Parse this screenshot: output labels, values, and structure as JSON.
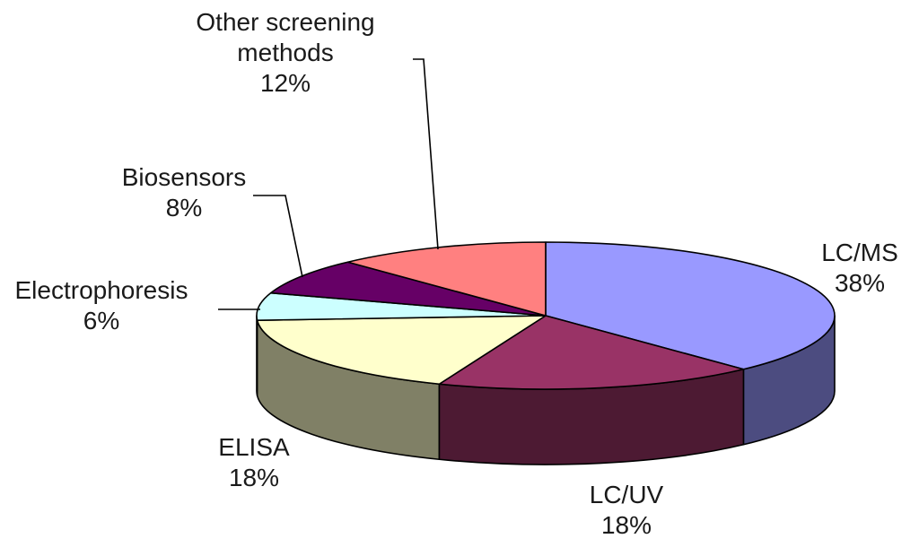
{
  "chart_data": {
    "type": "pie",
    "style": "3d-exploded-none",
    "title": "",
    "slices": [
      {
        "name": "LC/MS",
        "value": 38,
        "value_label": "38%",
        "top_color": "#9999ff",
        "side_color": "#4c4c80"
      },
      {
        "name": "LC/UV",
        "value": 18,
        "value_label": "18%",
        "top_color": "#993366",
        "side_color": "#4d1a33"
      },
      {
        "name": "ELISA",
        "value": 18,
        "value_label": "18%",
        "top_color": "#ffffcc",
        "side_color": "#808066"
      },
      {
        "name": "Electrophoresis",
        "value": 6,
        "value_label": "6%",
        "top_color": "#ccffff",
        "side_color": "#668080"
      },
      {
        "name": "Biosensors",
        "value": 8,
        "value_label": "8%",
        "top_color": "#660066",
        "side_color": "#330033"
      },
      {
        "name": "Other screening methods",
        "name_lines": [
          "Other screening",
          "methods"
        ],
        "value": 12,
        "value_label": "12%",
        "top_color": "#ff8080",
        "side_color": "#804040"
      }
    ],
    "legend": "none",
    "labels_outside": true
  }
}
